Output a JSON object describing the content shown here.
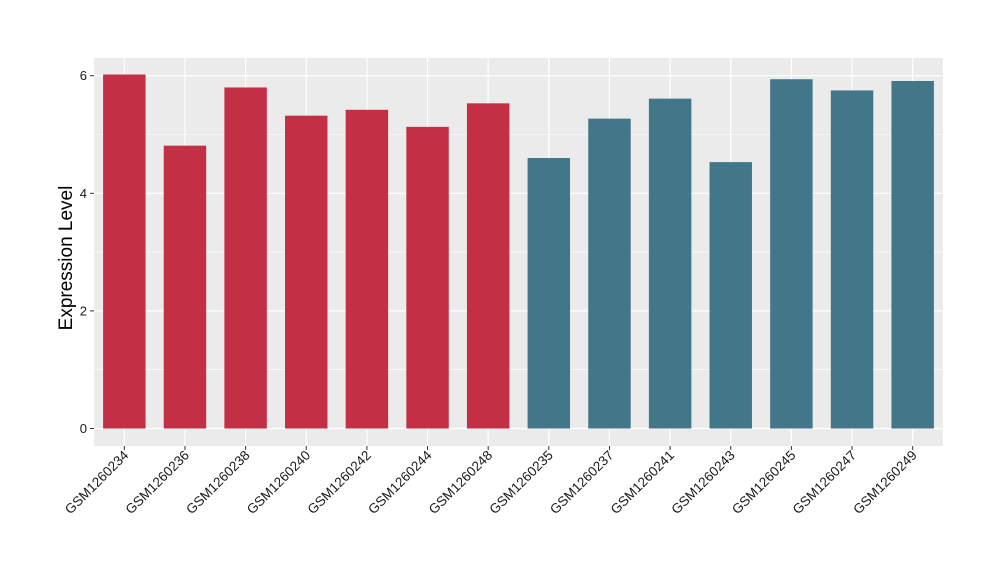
{
  "chart_data": {
    "type": "bar",
    "title": "",
    "xlabel": "",
    "ylabel": "Expression Level",
    "ylim": [
      0,
      6.3
    ],
    "yticks": [
      0,
      2,
      4,
      6
    ],
    "grid": true,
    "legend": "none",
    "background_color": "#ebebeb",
    "grid_color": "#ffffff",
    "categories": [
      "GSM1260234",
      "GSM1260236",
      "GSM1260238",
      "GSM1260240",
      "GSM1260242",
      "GSM1260244",
      "GSM1260248",
      "GSM1260235",
      "GSM1260237",
      "GSM1260241",
      "GSM1260243",
      "GSM1260245",
      "GSM1260247",
      "GSM1260249"
    ],
    "values": [
      6.02,
      4.81,
      5.8,
      5.32,
      5.42,
      5.13,
      5.53,
      4.6,
      5.27,
      5.61,
      4.53,
      5.94,
      5.75,
      5.91
    ],
    "group_colors": [
      "#c33045",
      "#c33045",
      "#c33045",
      "#c33045",
      "#c33045",
      "#c33045",
      "#c33045",
      "#427789",
      "#427789",
      "#427789",
      "#427789",
      "#427789",
      "#427789",
      "#427789"
    ]
  }
}
